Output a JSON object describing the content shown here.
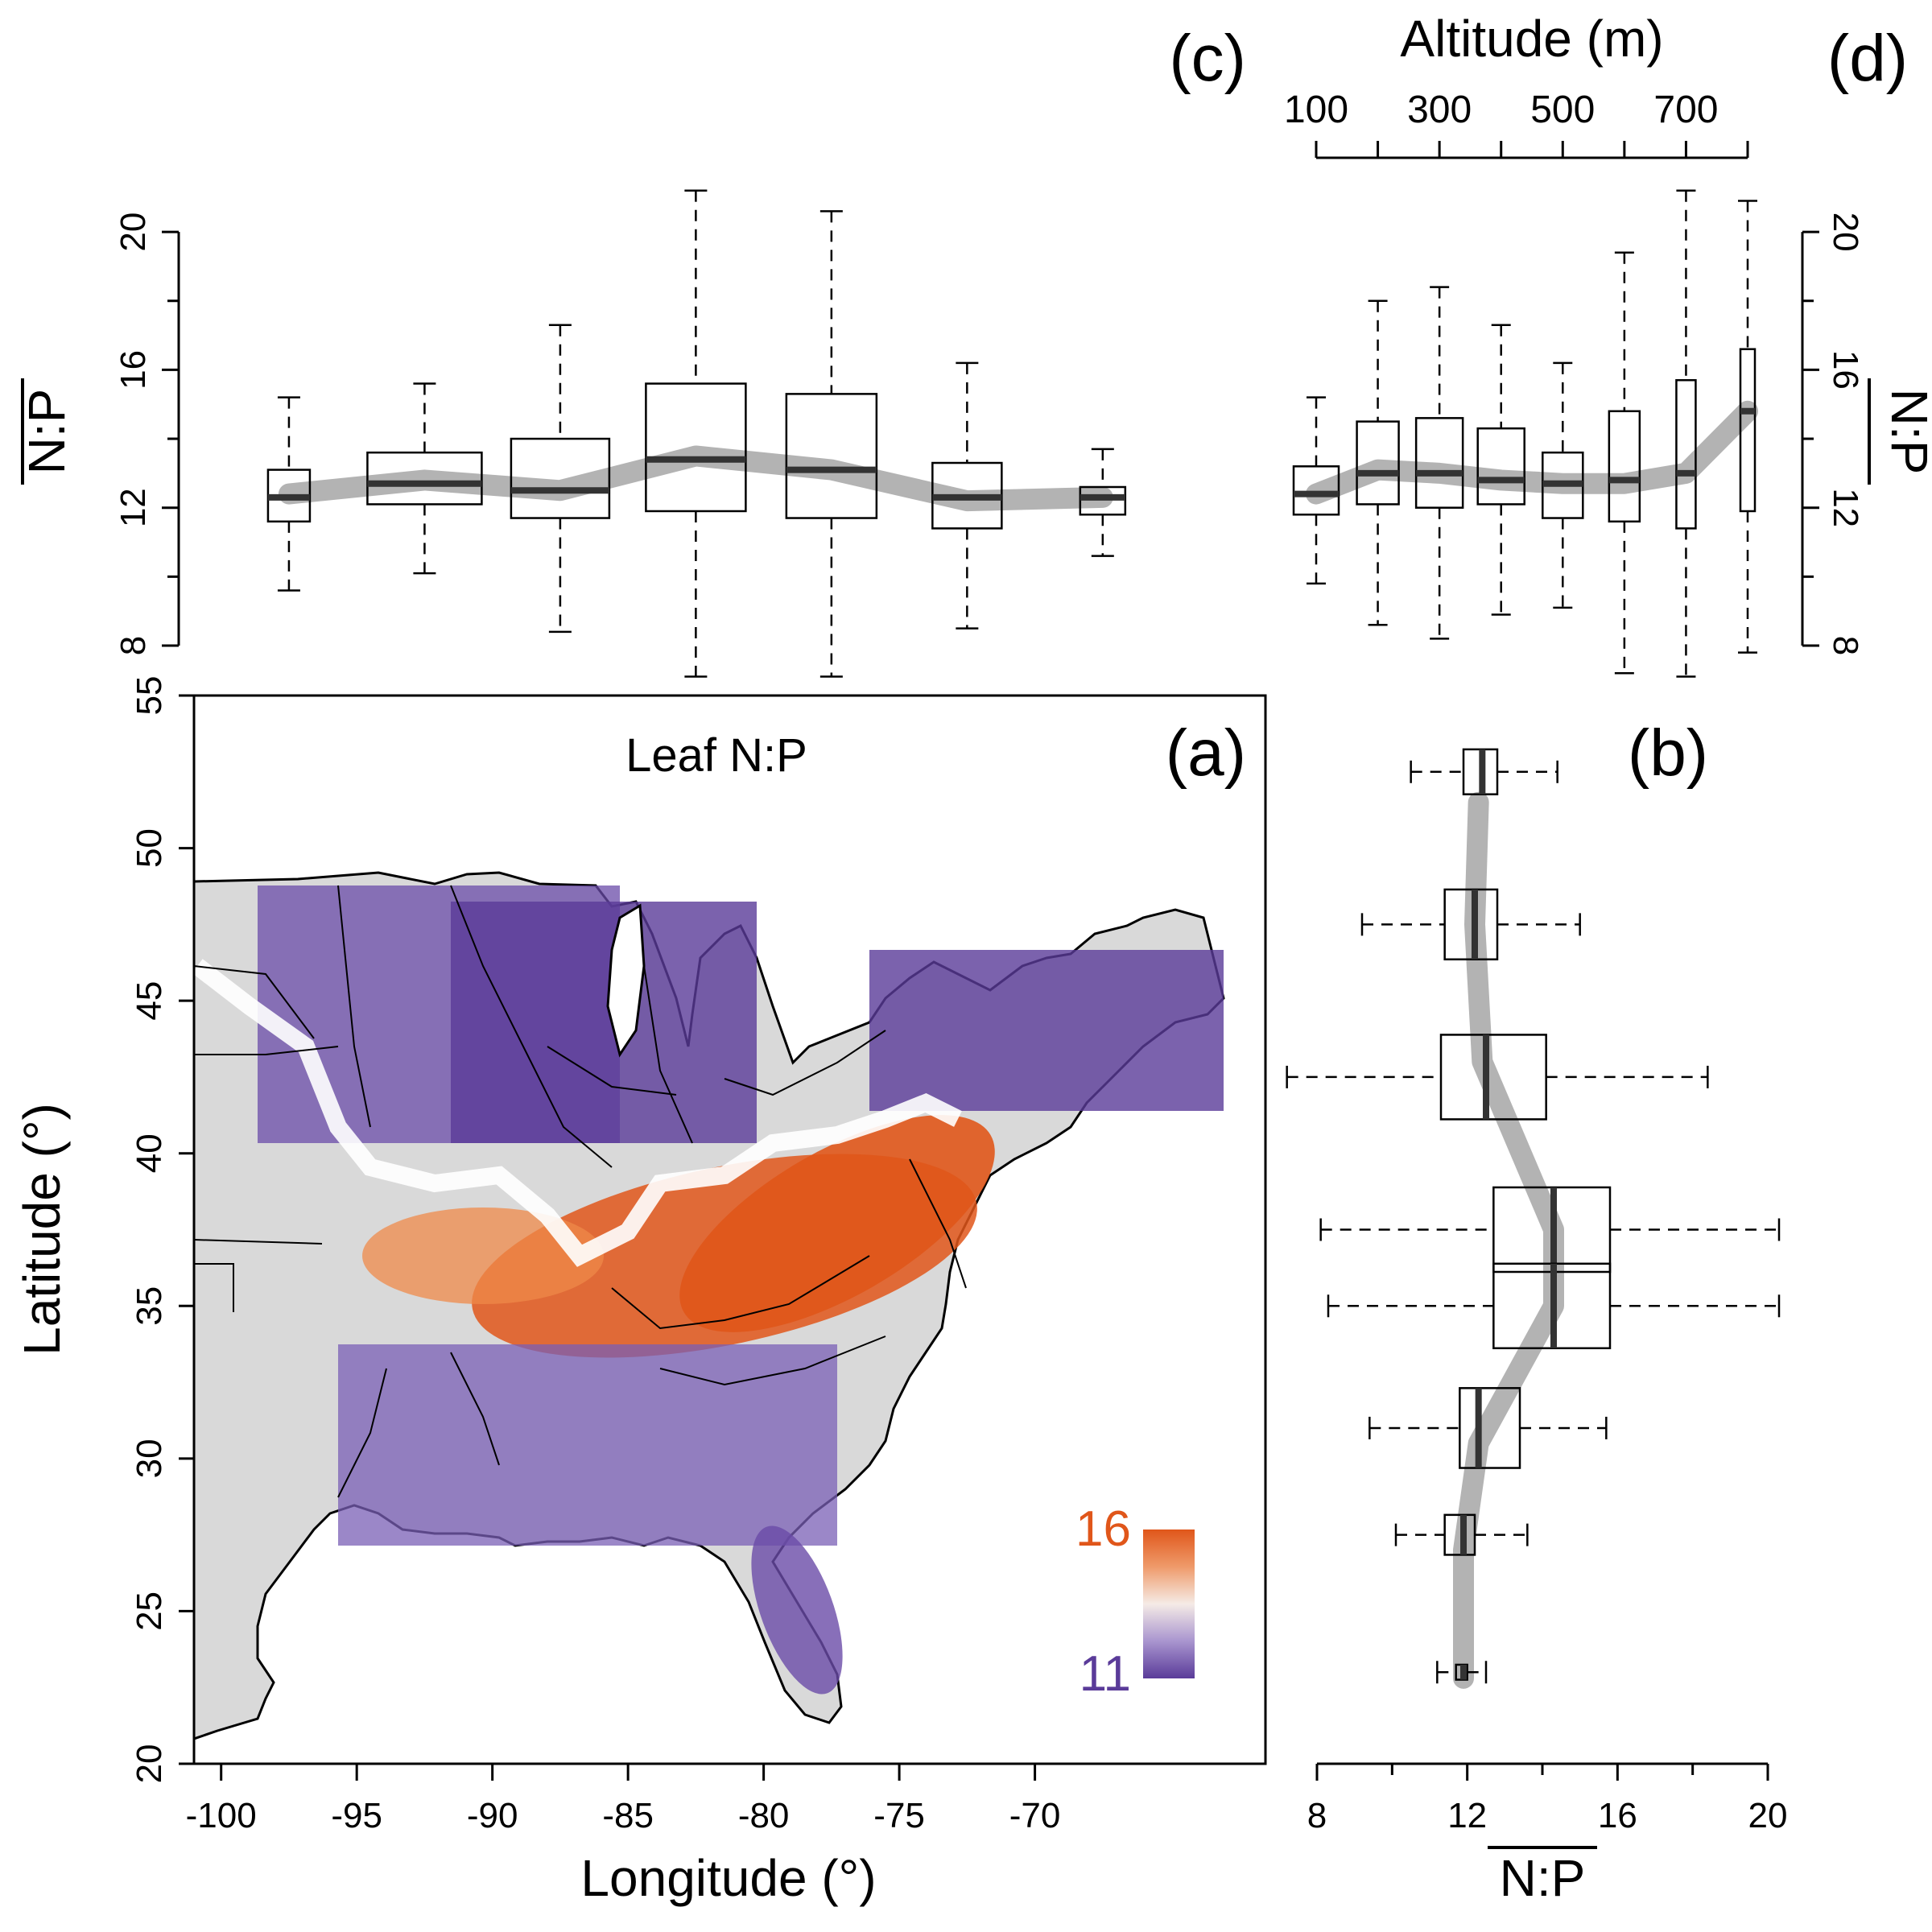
{
  "colors": {
    "high": "#e0561a",
    "low": "#5a3b99",
    "mid": "#f4ece8",
    "box_stroke": "#000000",
    "trend": "#b3b3b3",
    "median": "#333333",
    "land": "#d9d9d9"
  },
  "chart_data": [
    {
      "id": "a",
      "type": "heatmap",
      "panel_label": "(a)",
      "title": "Leaf N:P",
      "xlabel": "Longitude (°)",
      "ylabel": "Latitude (°)",
      "xlim": [
        -101,
        -61.5
      ],
      "ylim": [
        20,
        55
      ],
      "xticks": [
        -100,
        -95,
        -90,
        -85,
        -80,
        -75,
        -70
      ],
      "yticks": [
        20,
        25,
        30,
        35,
        40,
        45,
        50,
        55
      ],
      "colorbar": {
        "max_label": "16",
        "min_label": "11",
        "range": [
          11,
          16
        ],
        "position": "bottom-right"
      },
      "description": "Gridded map of leaf N:P over the eastern United States; high values (orange) concentrated in the Appalachian/central region around 34–40° latitude; low values (purple) in the north and south."
    },
    {
      "id": "b",
      "type": "box",
      "orientation": "horizontal",
      "panel_label": "(b)",
      "xlabel": "N:P",
      "xlabel_overline": true,
      "xlim": [
        8,
        20
      ],
      "xticks": [
        8,
        12,
        16,
        20
      ],
      "minor_xticks": [
        10,
        14,
        18
      ],
      "ylim": [
        20,
        55
      ],
      "boxes": [
        {
          "lat": 52.5,
          "whisker_low": 10.5,
          "q1": 11.9,
          "median": 12.4,
          "q3": 12.8,
          "whisker_high": 14.4
        },
        {
          "lat": 47.5,
          "whisker_low": 9.2,
          "q1": 11.4,
          "median": 12.2,
          "q3": 12.8,
          "whisker_high": 15.0
        },
        {
          "lat": 42.5,
          "whisker_low": 7.2,
          "q1": 11.3,
          "median": 12.5,
          "q3": 14.1,
          "whisker_high": 18.4
        },
        {
          "lat": 37.5,
          "whisker_low": 8.1,
          "q1": 12.7,
          "median": 14.3,
          "q3": 15.8,
          "whisker_high": 20.3
        },
        {
          "lat": 35.0,
          "whisker_low": 8.3,
          "q1": 12.7,
          "median": 14.3,
          "q3": 15.8,
          "whisker_high": 20.3
        },
        {
          "lat": 31.0,
          "whisker_low": 9.4,
          "q1": 11.8,
          "median": 12.3,
          "q3": 13.4,
          "whisker_high": 15.7
        },
        {
          "lat": 27.5,
          "whisker_low": 10.1,
          "q1": 11.4,
          "median": 11.9,
          "q3": 12.2,
          "whisker_high": 13.6
        },
        {
          "lat": 23.0,
          "whisker_low": 11.2,
          "q1": 11.7,
          "median": 11.9,
          "q3": 12.0,
          "whisker_high": 12.5
        }
      ],
      "trend": [
        [
          12.3,
          51.5
        ],
        [
          12.2,
          47.5
        ],
        [
          12.4,
          43.0
        ],
        [
          14.3,
          37.5
        ],
        [
          14.3,
          35.0
        ],
        [
          12.3,
          30.5
        ],
        [
          11.9,
          27.0
        ],
        [
          11.9,
          22.8
        ]
      ]
    },
    {
      "id": "c",
      "type": "box",
      "orientation": "vertical",
      "panel_label": "(c)",
      "ylabel": "N:P",
      "ylabel_overline": true,
      "ylim": [
        8,
        21.8
      ],
      "yticks": [
        8,
        12,
        16,
        20
      ],
      "minor_yticks": [
        10,
        14,
        18
      ],
      "boxes": [
        {
          "lon": -97.5,
          "whisker_low": 9.6,
          "q1": 11.6,
          "median": 12.3,
          "q3": 13.1,
          "whisker_high": 15.2
        },
        {
          "lon": -92.5,
          "whisker_low": 10.1,
          "q1": 12.1,
          "median": 12.7,
          "q3": 13.6,
          "whisker_high": 15.6
        },
        {
          "lon": -87.5,
          "whisker_low": 8.4,
          "q1": 11.7,
          "median": 12.5,
          "q3": 14.0,
          "whisker_high": 17.3
        },
        {
          "lon": -82.5,
          "whisker_low": 7.1,
          "q1": 11.9,
          "median": 13.4,
          "q3": 15.6,
          "whisker_high": 21.2
        },
        {
          "lon": -77.5,
          "whisker_low": 7.1,
          "q1": 11.7,
          "median": 13.1,
          "q3": 15.3,
          "whisker_high": 20.6
        },
        {
          "lon": -72.5,
          "whisker_low": 8.5,
          "q1": 11.4,
          "median": 12.3,
          "q3": 13.3,
          "whisker_high": 16.2
        },
        {
          "lon": -67.5,
          "whisker_low": 10.6,
          "q1": 11.8,
          "median": 12.3,
          "q3": 12.6,
          "whisker_high": 13.7
        }
      ],
      "trend": [
        [
          -97.5,
          12.4
        ],
        [
          -92.5,
          12.8
        ],
        [
          -87.5,
          12.5
        ],
        [
          -82.5,
          13.5
        ],
        [
          -77.5,
          13.1
        ],
        [
          -72.5,
          12.2
        ],
        [
          -67.5,
          12.3
        ]
      ]
    },
    {
      "id": "d",
      "type": "box",
      "orientation": "vertical",
      "panel_label": "(d)",
      "xlabel": "Altitude (m)",
      "xlim": [
        100,
        800
      ],
      "xticks": [
        100,
        200,
        300,
        400,
        500,
        600,
        700,
        800
      ],
      "xtick_labels": [
        "100",
        "300",
        "500",
        "700"
      ],
      "ylabel": "N:P",
      "ylabel_overline": true,
      "ylim": [
        8,
        21.8
      ],
      "yticks": [
        8,
        12,
        16,
        20
      ],
      "minor_yticks": [
        10,
        14,
        18
      ],
      "boxes": [
        {
          "alt": 100,
          "whisker_low": 9.8,
          "q1": 11.8,
          "median": 12.4,
          "q3": 13.2,
          "whisker_high": 15.2
        },
        {
          "alt": 200,
          "whisker_low": 8.6,
          "q1": 12.1,
          "median": 13.0,
          "q3": 14.5,
          "whisker_high": 18.0
        },
        {
          "alt": 300,
          "whisker_low": 8.2,
          "q1": 12.0,
          "median": 13.0,
          "q3": 14.6,
          "whisker_high": 18.4
        },
        {
          "alt": 400,
          "whisker_low": 8.9,
          "q1": 12.1,
          "median": 12.8,
          "q3": 14.3,
          "whisker_high": 17.3
        },
        {
          "alt": 500,
          "whisker_low": 9.1,
          "q1": 11.7,
          "median": 12.7,
          "q3": 13.6,
          "whisker_high": 16.2
        },
        {
          "alt": 600,
          "whisker_low": 7.2,
          "q1": 11.6,
          "median": 12.8,
          "q3": 14.8,
          "whisker_high": 19.4
        },
        {
          "alt": 700,
          "whisker_low": 7.1,
          "q1": 11.4,
          "median": 13.0,
          "q3": 15.7,
          "whisker_high": 21.2
        },
        {
          "alt": 800,
          "whisker_low": 7.8,
          "q1": 11.9,
          "median": 14.8,
          "q3": 16.6,
          "whisker_high": 20.9
        }
      ],
      "trend": [
        [
          100,
          12.4
        ],
        [
          200,
          13.1
        ],
        [
          300,
          13.0
        ],
        [
          400,
          12.8
        ],
        [
          500,
          12.7
        ],
        [
          600,
          12.7
        ],
        [
          700,
          13.0
        ],
        [
          800,
          14.8
        ]
      ]
    }
  ]
}
